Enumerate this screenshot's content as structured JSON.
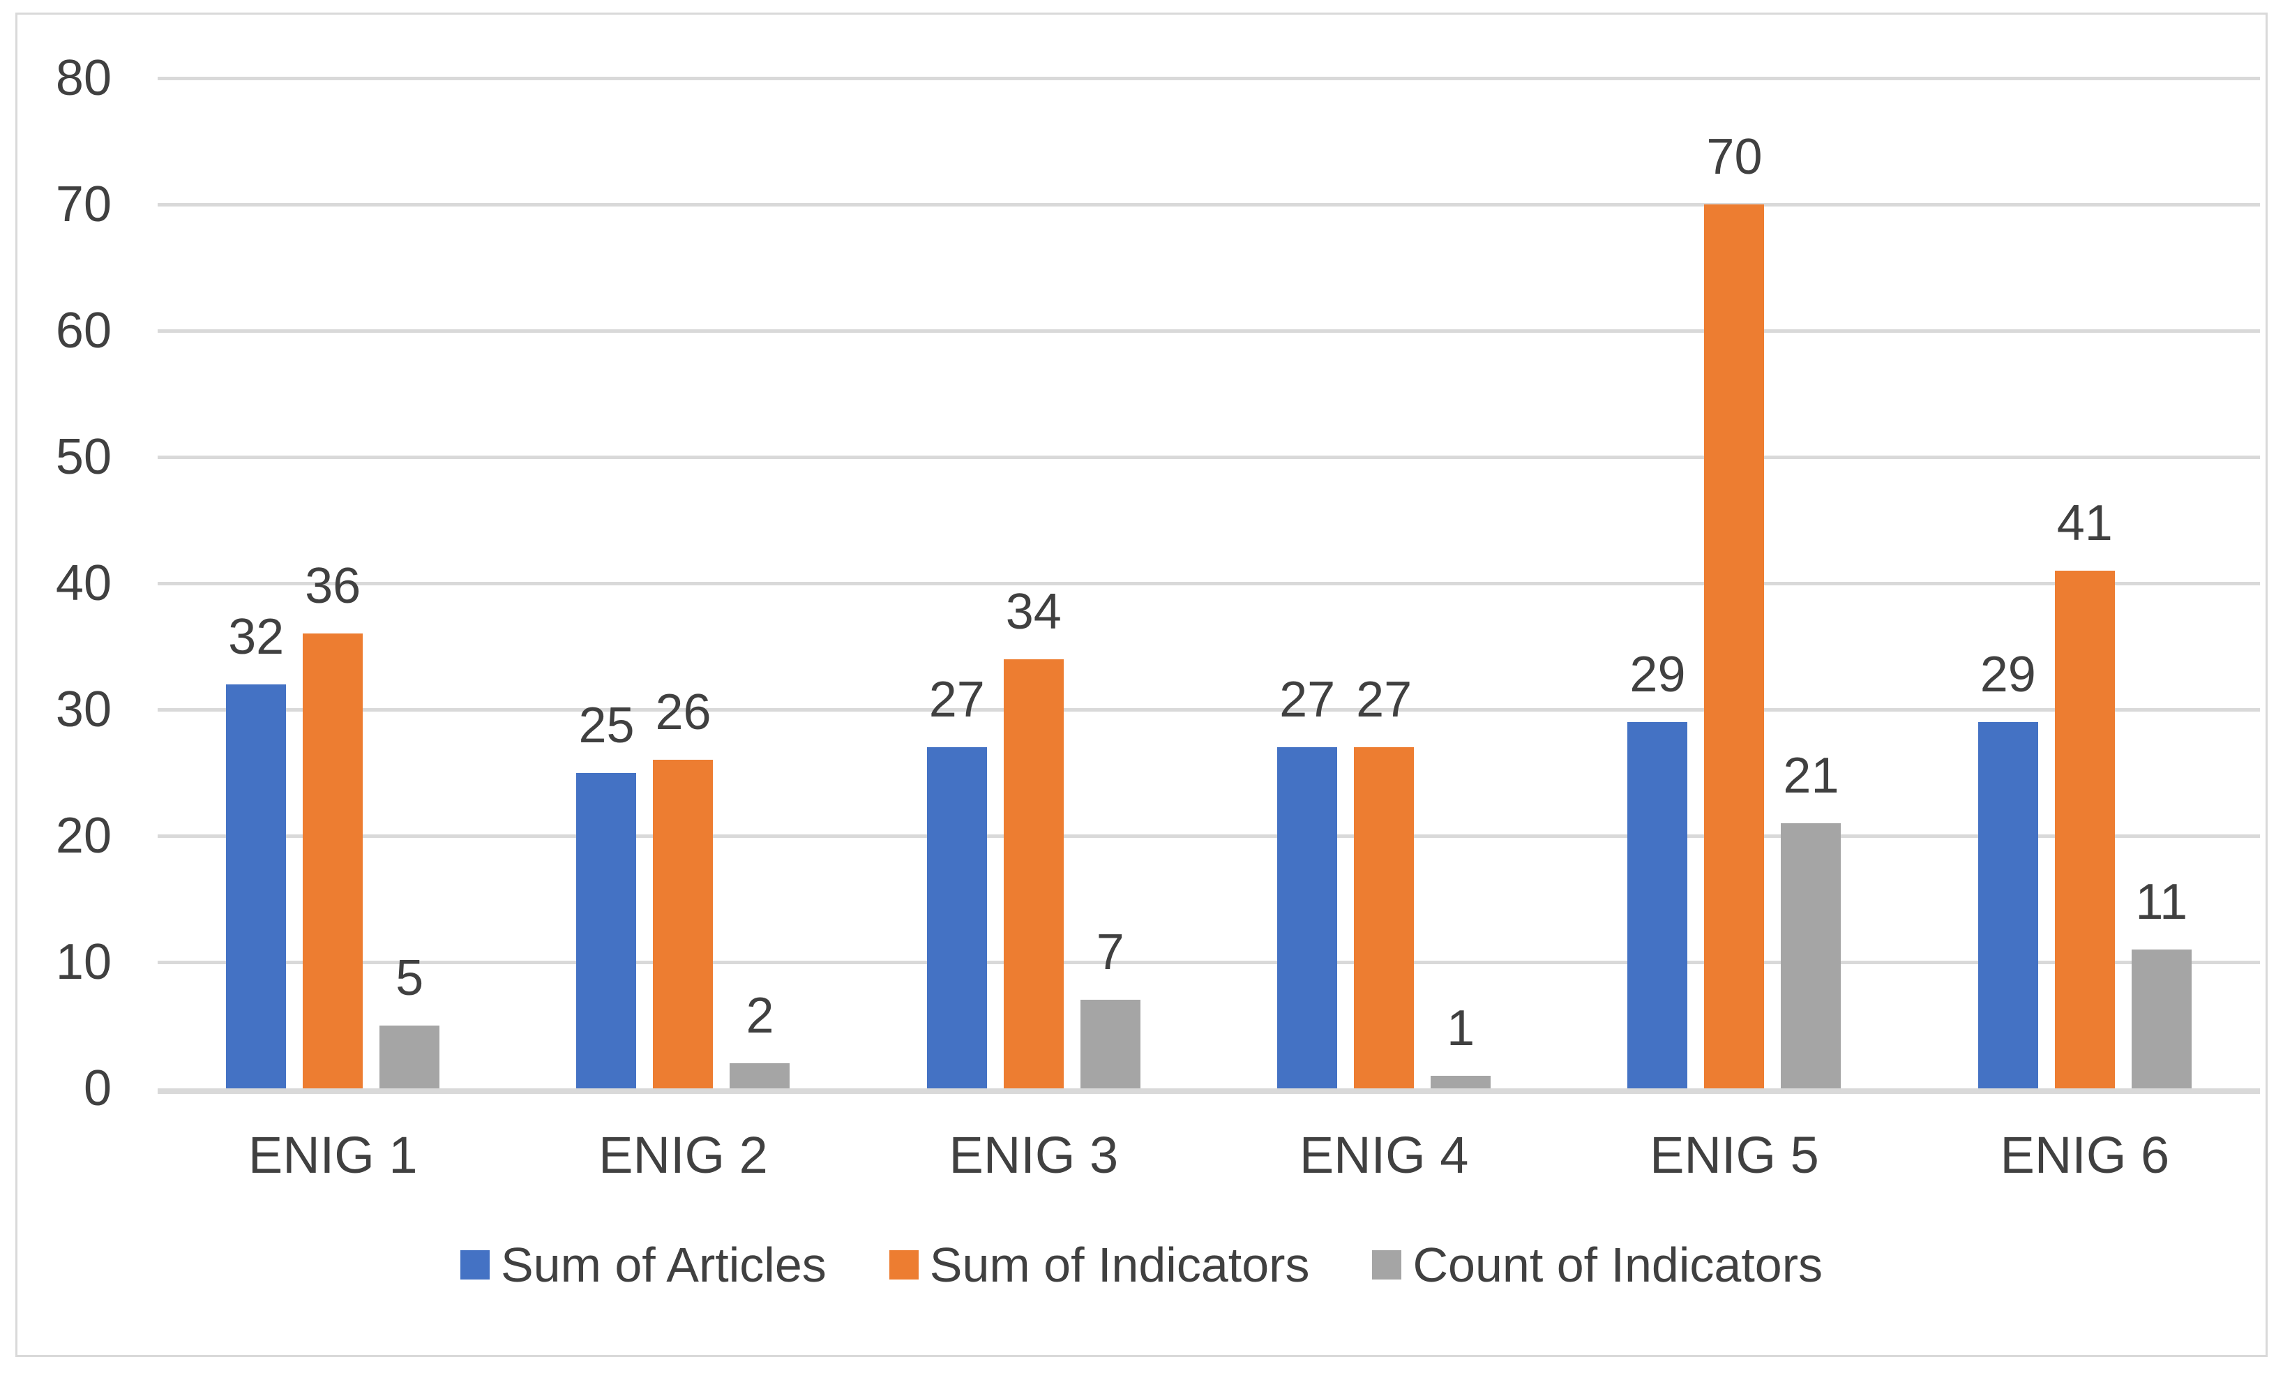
{
  "chart_data": {
    "type": "bar",
    "title": "",
    "categories": [
      "ENIG 1",
      "ENIG 2",
      "ENIG 3",
      "ENIG 4",
      "ENIG 5",
      "ENIG 6"
    ],
    "series": [
      {
        "name": "Sum of Articles",
        "color": "#4472C4",
        "values": [
          32,
          25,
          27,
          27,
          29,
          29
        ]
      },
      {
        "name": "Sum of Indicators",
        "color": "#ED7D31",
        "values": [
          36,
          26,
          34,
          27,
          70,
          41
        ]
      },
      {
        "name": "Count of Indicators",
        "color": "#A5A5A5",
        "values": [
          5,
          2,
          7,
          1,
          21,
          11
        ]
      }
    ],
    "ylim": [
      0,
      80
    ],
    "yticks": [
      0,
      10,
      20,
      30,
      40,
      50,
      60,
      70,
      80
    ],
    "grid": true,
    "data_labels": true,
    "legend_position": "bottom"
  },
  "style_colors": {
    "gridline": "#D9D9D9",
    "axis_line": "#D9D9D9",
    "figure_border": "#D9D9D9",
    "text": "#404040",
    "background": "#FFFFFF"
  }
}
